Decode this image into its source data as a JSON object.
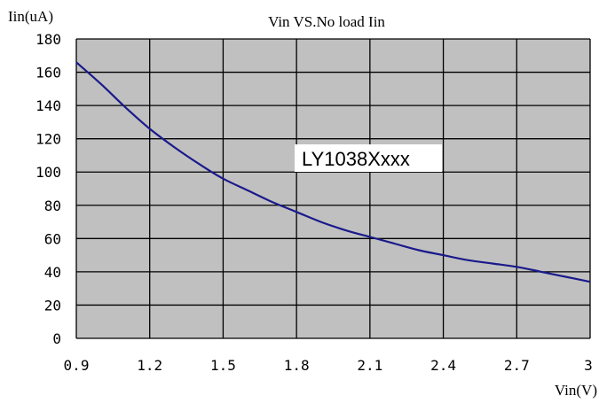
{
  "chart_data": {
    "type": "line",
    "title": "Vin VS.No load Iin",
    "xlabel": "Vin(V)",
    "ylabel": "Iin(uA)",
    "annotation": "LY1038Xxxx",
    "xlim": [
      0.9,
      3
    ],
    "ylim": [
      0,
      180
    ],
    "x_ticks": [
      "0.9",
      "1.2",
      "1.5",
      "1.8",
      "2.1",
      "2.4",
      "2.7",
      "3"
    ],
    "y_ticks": [
      "0",
      "20",
      "40",
      "60",
      "80",
      "100",
      "120",
      "140",
      "160",
      "180"
    ],
    "grid": true,
    "series": [
      {
        "x": [
          0.9,
          1.0,
          1.1,
          1.2,
          1.3,
          1.4,
          1.5,
          1.6,
          1.7,
          1.8,
          1.9,
          2.0,
          2.1,
          2.2,
          2.3,
          2.4,
          2.5,
          2.6,
          2.7,
          2.8,
          2.9,
          3.0
        ],
        "values": [
          166,
          153,
          139,
          126,
          115,
          105,
          96,
          89,
          82,
          76,
          70,
          65,
          61,
          57,
          53,
          50,
          47,
          45,
          43,
          40,
          37,
          34
        ],
        "color": "#1a1a8c"
      }
    ],
    "colors": {
      "plot_background": "#c0c0c0",
      "grid": "#000000",
      "line": "#1a1a8c"
    }
  }
}
